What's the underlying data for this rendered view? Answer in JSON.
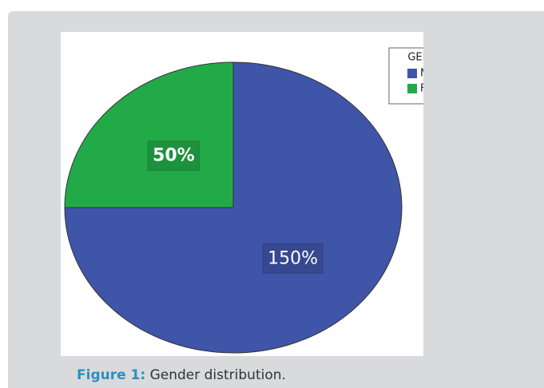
{
  "chart_data": {
    "type": "pie",
    "legend_title": "GENDER",
    "categories": [
      "Male",
      "Female"
    ],
    "values": [
      150,
      50
    ],
    "value_labels": [
      "150%",
      "50%"
    ],
    "colors": [
      "#3f55a8",
      "#22aa48"
    ]
  },
  "caption": {
    "label": "Figure 1:",
    "text": "Gender distribution."
  }
}
